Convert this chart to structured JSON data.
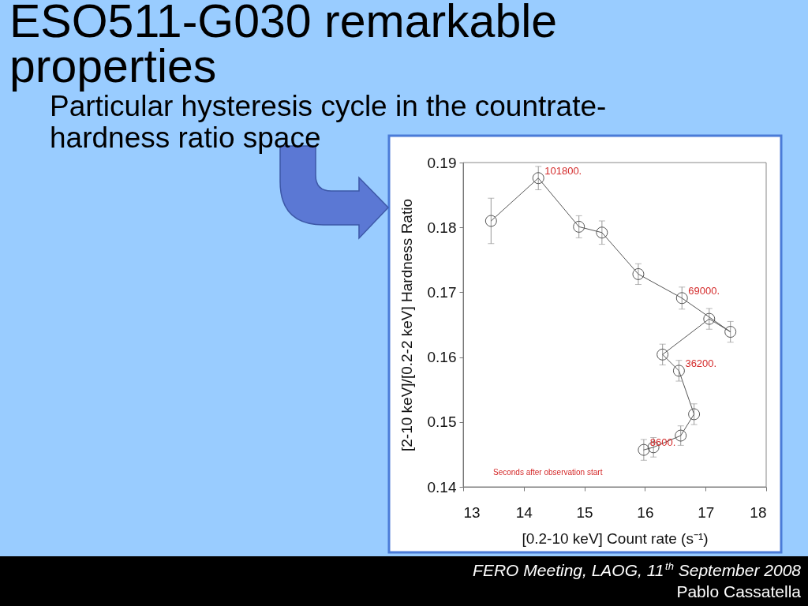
{
  "chart_data": {
    "type": "line",
    "title": "ESO511-G030 remarkable properties",
    "subtitle": "Particular hysteresis cycle in the countrate-hardness ratio space",
    "xlabel": "[0.2-10 keV] Count rate (s⁻¹)",
    "ylabel": "[2-10 keV]/[0.2-2 keV] Hardness Ratio",
    "x": [
      15.98,
      16.14,
      16.59,
      16.81,
      16.56,
      16.29,
      17.06,
      17.41,
      16.61,
      15.89,
      15.29,
      14.91,
      14.24,
      13.46
    ],
    "series": [
      {
        "color": "#555555",
        "values": [
          0.1457,
          0.1461,
          0.1479,
          0.1512,
          0.1579,
          0.1604,
          0.1659,
          0.1639,
          0.1691,
          0.1728,
          0.1792,
          0.1801,
          0.1876,
          0.181
        ],
        "errors": [
          0.0016,
          0.0015,
          0.0015,
          0.0016,
          0.0016,
          0.0016,
          0.0016,
          0.0016,
          0.0017,
          0.0016,
          0.0018,
          0.0017,
          0.0018,
          0.0035
        ]
      }
    ],
    "xlim": [
      13,
      18
    ],
    "ylim": [
      0.14,
      0.19
    ],
    "xticks": [
      13,
      14,
      15,
      16,
      17,
      18
    ],
    "yticks": [
      0.14,
      0.15,
      0.16,
      0.17,
      0.18,
      0.19
    ],
    "marker": "circle",
    "line_style": "solid",
    "annotations": [
      {
        "text": "8600.",
        "x": 15.98,
        "y": 0.1457
      },
      {
        "text": "36200.",
        "x": 16.56,
        "y": 0.1579
      },
      {
        "text": "69000.",
        "x": 16.61,
        "y": 0.1691
      },
      {
        "text": "101800.",
        "x": 14.24,
        "y": 0.1876
      },
      "Seconds after observation start",
      "FERO Meeting, LAOG, 11$^{th}$ September 2008",
      "Pablo Cassatella"
    ]
  }
}
